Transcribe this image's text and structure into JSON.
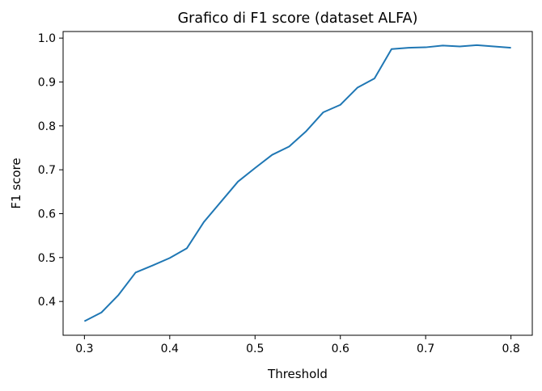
{
  "chart_data": {
    "type": "line",
    "title": "Grafico di F1 score (dataset ALFA)",
    "xlabel": "Threshold",
    "ylabel": "F1 score",
    "xlim": [
      0.275,
      0.825
    ],
    "ylim": [
      0.323,
      1.015
    ],
    "xticks": [
      0.3,
      0.4,
      0.5,
      0.6,
      0.7,
      0.8
    ],
    "xtick_labels": [
      "0.3",
      "0.4",
      "0.5",
      "0.6",
      "0.7",
      "0.8"
    ],
    "yticks": [
      0.4,
      0.5,
      0.6,
      0.7,
      0.8,
      0.9,
      1.0
    ],
    "ytick_labels": [
      "0.4",
      "0.5",
      "0.6",
      "0.7",
      "0.8",
      "0.9",
      "1.0"
    ],
    "grid": false,
    "series": [
      {
        "color": "#1f77b4",
        "x": [
          0.3,
          0.32,
          0.34,
          0.36,
          0.38,
          0.4,
          0.42,
          0.44,
          0.46,
          0.48,
          0.5,
          0.52,
          0.54,
          0.56,
          0.58,
          0.6,
          0.62,
          0.64,
          0.66,
          0.68,
          0.7,
          0.72,
          0.74,
          0.76,
          0.78,
          0.8
        ],
        "y": [
          0.355,
          0.375,
          0.415,
          0.466,
          0.482,
          0.499,
          0.521,
          0.581,
          0.627,
          0.673,
          0.704,
          0.734,
          0.753,
          0.788,
          0.831,
          0.848,
          0.887,
          0.908,
          0.975,
          0.978,
          0.979,
          0.983,
          0.981,
          0.984,
          0.981,
          0.978
        ]
      }
    ]
  }
}
